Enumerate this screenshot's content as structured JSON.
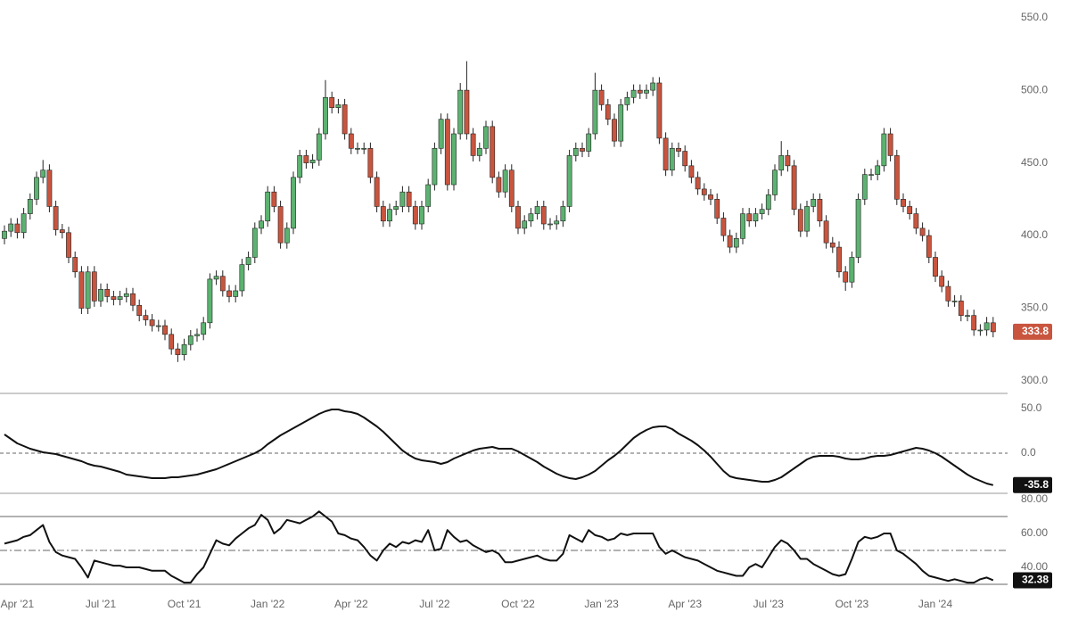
{
  "chart_data": [
    {
      "type": "candlestick",
      "categories": [
        null,
        null,
        "Apr '21",
        null,
        null,
        null,
        null,
        null,
        null,
        null,
        null,
        null,
        null,
        null,
        null,
        "Jul '21",
        null,
        null,
        null,
        null,
        null,
        null,
        null,
        null,
        null,
        null,
        null,
        null,
        "Oct '21",
        null,
        null,
        null,
        null,
        null,
        null,
        null,
        null,
        null,
        null,
        null,
        null,
        "Jan '22",
        null,
        null,
        null,
        null,
        null,
        null,
        null,
        null,
        null,
        null,
        null,
        null,
        "Apr '22",
        null,
        null,
        null,
        null,
        null,
        null,
        null,
        null,
        null,
        null,
        null,
        null,
        "Jul '22",
        null,
        null,
        null,
        null,
        null,
        null,
        null,
        null,
        null,
        null,
        null,
        null,
        "Oct '22",
        null,
        null,
        null,
        null,
        null,
        null,
        null,
        null,
        null,
        null,
        null,
        null,
        "Jan '23",
        null,
        null,
        null,
        null,
        null,
        null,
        null,
        null,
        null,
        null,
        null,
        null,
        "Apr '23",
        null,
        null,
        null,
        null,
        null,
        null,
        null,
        null,
        null,
        null,
        null,
        null,
        "Jul '23",
        null,
        null,
        null,
        null,
        null,
        null,
        null,
        null,
        null,
        null,
        null,
        null,
        "Oct '23",
        null,
        null,
        null,
        null,
        null,
        null,
        null,
        null,
        null,
        null,
        null,
        null,
        "Jan '24",
        null,
        null,
        null,
        null,
        null,
        null,
        null,
        null,
        null
      ],
      "open": [
        398,
        403,
        408,
        402,
        415,
        425,
        440,
        445,
        420,
        404,
        402,
        385,
        375,
        350,
        375,
        355,
        363,
        358,
        356,
        358,
        360,
        352,
        345,
        342,
        338,
        338,
        332,
        322,
        318,
        325,
        331,
        332,
        340,
        370,
        372,
        362,
        358,
        362,
        380,
        385,
        405,
        410,
        430,
        420,
        395,
        405,
        440,
        455,
        450,
        452,
        470,
        495,
        488,
        490,
        470,
        460,
        460,
        460,
        440,
        420,
        410,
        418,
        420,
        430,
        420,
        408,
        420,
        435,
        460,
        480,
        435,
        470,
        500,
        470,
        455,
        460,
        475,
        440,
        430,
        445,
        420,
        405,
        410,
        415,
        420,
        408,
        408,
        410,
        420,
        455,
        460,
        458,
        470,
        500,
        490,
        480,
        465,
        490,
        495,
        500,
        498,
        500,
        505,
        467,
        445,
        460,
        458,
        448,
        440,
        432,
        428,
        425,
        412,
        400,
        392,
        398,
        415,
        410,
        415,
        418,
        428,
        445,
        455,
        448,
        418,
        403,
        420,
        425,
        410,
        395,
        392,
        375,
        368,
        385,
        425,
        442,
        442,
        448,
        470,
        455,
        425,
        420,
        415,
        405,
        400,
        385,
        372,
        365,
        355,
        355,
        345,
        345,
        335,
        335,
        340
      ],
      "high": [
        407,
        412,
        412,
        419,
        429,
        444,
        452,
        449,
        424,
        408,
        406,
        389,
        379,
        379,
        379,
        367,
        367,
        362,
        362,
        364,
        364,
        356,
        349,
        346,
        342,
        342,
        336,
        326,
        329,
        335,
        336,
        344,
        374,
        376,
        376,
        366,
        366,
        384,
        389,
        409,
        414,
        434,
        434,
        424,
        409,
        444,
        459,
        459,
        456,
        474,
        507,
        499,
        494,
        494,
        474,
        464,
        464,
        464,
        444,
        424,
        422,
        424,
        434,
        434,
        424,
        424,
        439,
        464,
        484,
        484,
        474,
        505,
        520,
        474,
        464,
        479,
        479,
        444,
        449,
        449,
        424,
        414,
        419,
        424,
        424,
        412,
        414,
        424,
        459,
        464,
        464,
        474,
        512,
        504,
        494,
        484,
        494,
        499,
        504,
        504,
        504,
        509,
        509,
        471,
        464,
        464,
        462,
        452,
        444,
        436,
        432,
        429,
        416,
        404,
        402,
        419,
        419,
        419,
        422,
        432,
        449,
        465,
        459,
        452,
        422,
        424,
        429,
        429,
        414,
        399,
        396,
        379,
        389,
        429,
        446,
        446,
        452,
        474,
        474,
        459,
        429,
        424,
        419,
        409,
        404,
        389,
        376,
        369,
        359,
        359,
        349,
        349,
        339,
        344,
        344
      ],
      "low": [
        394,
        399,
        398,
        398,
        411,
        421,
        436,
        416,
        400,
        398,
        381,
        371,
        346,
        346,
        351,
        351,
        354,
        352,
        352,
        354,
        348,
        341,
        338,
        334,
        334,
        328,
        318,
        313,
        314,
        321,
        327,
        328,
        336,
        366,
        358,
        354,
        354,
        358,
        376,
        381,
        401,
        406,
        416,
        391,
        391,
        401,
        436,
        446,
        446,
        448,
        466,
        484,
        484,
        466,
        456,
        456,
        456,
        436,
        416,
        406,
        406,
        414,
        416,
        416,
        404,
        404,
        416,
        431,
        456,
        431,
        431,
        466,
        466,
        451,
        451,
        456,
        436,
        426,
        426,
        416,
        401,
        401,
        406,
        411,
        404,
        404,
        404,
        406,
        416,
        451,
        454,
        454,
        466,
        486,
        476,
        461,
        461,
        486,
        491,
        494,
        494,
        496,
        463,
        441,
        441,
        454,
        444,
        436,
        428,
        424,
        421,
        408,
        396,
        388,
        388,
        394,
        406,
        406,
        411,
        414,
        424,
        441,
        444,
        414,
        399,
        399,
        416,
        406,
        391,
        388,
        371,
        362,
        364,
        381,
        421,
        438,
        438,
        444,
        451,
        421,
        416,
        411,
        401,
        396,
        381,
        368,
        361,
        351,
        351,
        341,
        341,
        331,
        331,
        331,
        330
      ],
      "close": [
        403,
        408,
        402,
        415,
        425,
        440,
        445,
        420,
        404,
        402,
        385,
        375,
        350,
        375,
        355,
        363,
        358,
        356,
        358,
        360,
        352,
        345,
        342,
        338,
        338,
        332,
        322,
        318,
        325,
        331,
        332,
        340,
        370,
        372,
        362,
        358,
        362,
        380,
        385,
        405,
        410,
        430,
        420,
        395,
        405,
        440,
        455,
        450,
        452,
        470,
        495,
        488,
        490,
        470,
        460,
        460,
        460,
        440,
        420,
        410,
        418,
        420,
        430,
        420,
        408,
        420,
        435,
        460,
        480,
        435,
        470,
        500,
        470,
        455,
        460,
        475,
        440,
        430,
        445,
        420,
        405,
        410,
        415,
        420,
        408,
        408,
        410,
        420,
        455,
        460,
        458,
        470,
        500,
        490,
        480,
        465,
        490,
        495,
        500,
        498,
        500,
        505,
        467,
        445,
        460,
        458,
        448,
        440,
        432,
        428,
        425,
        412,
        400,
        392,
        398,
        415,
        410,
        415,
        418,
        428,
        445,
        455,
        448,
        418,
        403,
        420,
        425,
        410,
        395,
        392,
        375,
        368,
        385,
        425,
        442,
        442,
        448,
        470,
        455,
        425,
        420,
        415,
        405,
        400,
        385,
        372,
        365,
        355,
        355,
        345,
        345,
        335,
        335,
        340,
        333.8
      ],
      "up_color": "#5cb270",
      "down_color": "#c9553f",
      "ylim": [
        292,
        559
      ],
      "yticks": [
        {
          "value": 300,
          "label": "300.0"
        },
        {
          "value": 350,
          "label": "350.0"
        },
        {
          "value": 400,
          "label": "400.0"
        },
        {
          "value": 450,
          "label": "450.0"
        },
        {
          "value": 500,
          "label": "500.0"
        },
        {
          "value": 550,
          "label": "550.0"
        }
      ]
    },
    {
      "type": "line",
      "color": "#111111",
      "values": [
        21,
        16,
        11,
        8,
        5,
        3,
        1,
        0,
        -1,
        -3,
        -5,
        -7,
        -9,
        -12,
        -14,
        -15,
        -17,
        -19,
        -21,
        -24,
        -25,
        -26,
        -27,
        -28,
        -28,
        -28,
        -27,
        -27,
        -26,
        -25,
        -24,
        -22,
        -20,
        -18,
        -15,
        -12,
        -9,
        -6,
        -3,
        0,
        4,
        10,
        15,
        20,
        24,
        28,
        32,
        36,
        40,
        44,
        47,
        49,
        49,
        47,
        46,
        44,
        40,
        35,
        30,
        24,
        17,
        10,
        3,
        -2,
        -6,
        -8,
        -9,
        -10,
        -12,
        -10,
        -6,
        -3,
        0,
        3,
        5,
        6,
        7,
        5,
        5,
        5,
        2,
        -2,
        -6,
        -10,
        -15,
        -19,
        -23,
        -26,
        -28,
        -29,
        -27,
        -24,
        -20,
        -14,
        -8,
        -3,
        3,
        10,
        17,
        22,
        26,
        29,
        30,
        30,
        27,
        22,
        18,
        14,
        9,
        3,
        -4,
        -12,
        -20,
        -26,
        -28,
        -29,
        -30,
        -31,
        -32,
        -32,
        -30,
        -27,
        -22,
        -17,
        -12,
        -7,
        -4,
        -3,
        -3,
        -3,
        -4,
        -6,
        -7,
        -7,
        -6,
        -4,
        -3,
        -3,
        -2,
        0,
        2,
        4,
        6,
        5,
        3,
        0,
        -4,
        -9,
        -14,
        -19,
        -24,
        -28,
        -31,
        -34,
        -35.8
      ],
      "ylim": [
        -45,
        66
      ],
      "yticks": [
        {
          "value": 0,
          "label": "0.0"
        },
        {
          "value": 50,
          "label": "50.0"
        }
      ],
      "reference_lines": [
        {
          "value": 0,
          "dash": "4 3"
        }
      ]
    },
    {
      "type": "line",
      "color": "#111111",
      "values": [
        54,
        55,
        56,
        58,
        59,
        62,
        65,
        55,
        49,
        47,
        46,
        45,
        40,
        34,
        44,
        43,
        42,
        41,
        41,
        40,
        40,
        40,
        39,
        38,
        38,
        38,
        35,
        33,
        31,
        31,
        36,
        40,
        48,
        56,
        54,
        53,
        57,
        60,
        63,
        65,
        71,
        68,
        60,
        63,
        68,
        67,
        66,
        68,
        70,
        73,
        70,
        67,
        60,
        59,
        57,
        56,
        52,
        47,
        44,
        50,
        54,
        52,
        55,
        54,
        56,
        55,
        62,
        50,
        51,
        62,
        58,
        55,
        56,
        53,
        51,
        49,
        50,
        48,
        43,
        43,
        44,
        45,
        46,
        47,
        45,
        44,
        44,
        48,
        59,
        57,
        55,
        62,
        59,
        58,
        56,
        57,
        60,
        59,
        60,
        60,
        60,
        60,
        52,
        48,
        50,
        48,
        46,
        45,
        44,
        42,
        40,
        38,
        37,
        36,
        35,
        35,
        40,
        42,
        40,
        46,
        52,
        56,
        54,
        50,
        45,
        45,
        42,
        40,
        38,
        36,
        35,
        36,
        45,
        55,
        58,
        57,
        58,
        60,
        60,
        50,
        48,
        45,
        42,
        38,
        35,
        34,
        33,
        32,
        33,
        32,
        31,
        31,
        33,
        34,
        32.38
      ],
      "ylim": [
        28.4,
        82.1
      ],
      "yticks": [
        {
          "value": 40,
          "label": "40.00"
        },
        {
          "value": 60,
          "label": "60.00"
        },
        {
          "value": 80,
          "label": "80.00"
        }
      ],
      "reference_lines": [
        {
          "value": 70,
          "dash": "none"
        },
        {
          "value": 50,
          "dash": "8 3 2 3"
        },
        {
          "value": 30,
          "dash": "none"
        }
      ]
    }
  ]
}
